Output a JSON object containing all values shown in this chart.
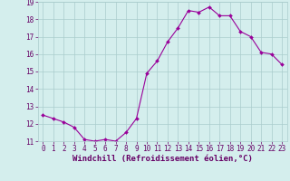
{
  "x": [
    0,
    1,
    2,
    3,
    4,
    5,
    6,
    7,
    8,
    9,
    10,
    11,
    12,
    13,
    14,
    15,
    16,
    17,
    18,
    19,
    20,
    21,
    22,
    23
  ],
  "y": [
    12.5,
    12.3,
    12.1,
    11.8,
    11.1,
    11.0,
    11.1,
    11.0,
    11.5,
    12.3,
    14.9,
    15.6,
    16.7,
    17.5,
    18.5,
    18.4,
    18.7,
    18.2,
    18.2,
    17.3,
    17.0,
    16.1,
    16.0,
    15.4
  ],
  "line_color": "#990099",
  "marker": "D",
  "marker_size": 2,
  "bg_color": "#d4eeed",
  "grid_color": "#aacccc",
  "xlabel": "Windchill (Refroidissement éolien,°C)",
  "ylabel": "",
  "ylim": [
    11,
    19
  ],
  "xlim": [
    -0.5,
    23.5
  ],
  "yticks": [
    11,
    12,
    13,
    14,
    15,
    16,
    17,
    18,
    19
  ],
  "xticks": [
    0,
    1,
    2,
    3,
    4,
    5,
    6,
    7,
    8,
    9,
    10,
    11,
    12,
    13,
    14,
    15,
    16,
    17,
    18,
    19,
    20,
    21,
    22,
    23
  ],
  "tick_fontsize": 5.5,
  "xlabel_fontsize": 6.5,
  "label_color": "#660066",
  "linewidth": 0.8
}
